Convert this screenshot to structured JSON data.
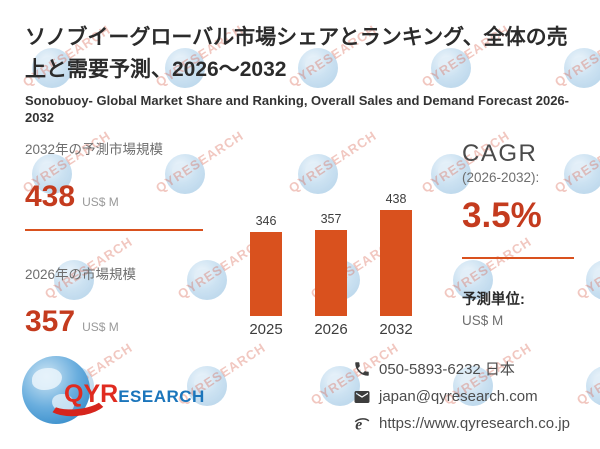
{
  "header": {
    "title_ja": "ソノブイーグローバル市場シェアとランキング、全体の売上と需要予測、2026～2032",
    "title_en": "Sonobuoy- Global Market Share and Ranking, Overall Sales and Demand Forecast 2026-2032"
  },
  "stats": {
    "forecast_2032": {
      "label": "2032年の予測市場規模",
      "value": "438",
      "unit": "US$ M"
    },
    "base_2026": {
      "label": "2026年の市場規模",
      "value": "357",
      "unit": "US$ M"
    }
  },
  "cagr": {
    "label": "CAGR",
    "range": "(2026-2032):",
    "value": "3.5%"
  },
  "forecast_unit": {
    "label": "予測単位:",
    "value": "US$ M"
  },
  "chart_data": {
    "type": "bar",
    "categories": [
      "2025",
      "2026",
      "2032"
    ],
    "values": [
      346,
      357,
      438
    ],
    "title": "",
    "xlabel": "",
    "ylabel": "",
    "ylim": [
      0,
      438
    ],
    "grid": false,
    "legend": false,
    "bar_color": "#d9511e"
  },
  "contacts": {
    "phone": "050-5893-6232 日本",
    "email": "japan@qyresearch.com",
    "website": "https://www.qyresearch.co.jp"
  },
  "logo": {
    "part1": "QYR",
    "part2": "ESEARCH"
  },
  "watermark_text": "QYRESEARCH",
  "colors": {
    "accent_red": "#c43b1e",
    "bar_orange": "#d9511e",
    "divider": "#d9511e"
  }
}
